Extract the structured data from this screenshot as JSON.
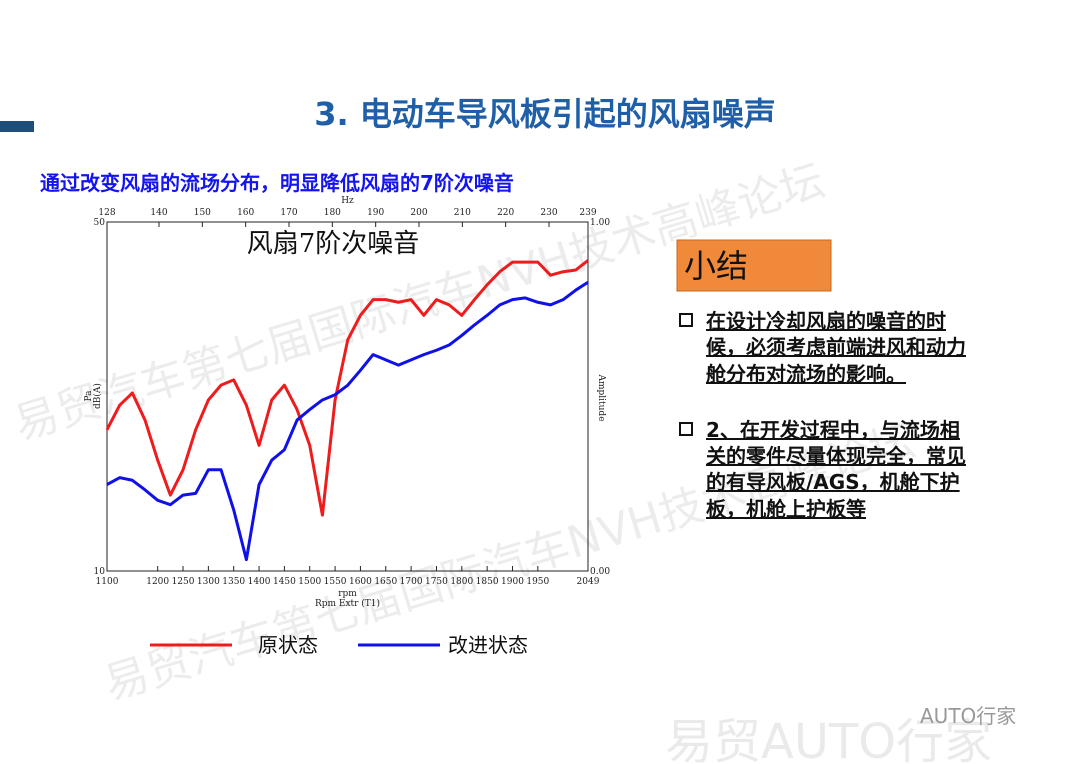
{
  "slide_title": "3.   电动车导风板引起的风扇噪声",
  "subtitle": "通过改变风扇的流场分布，明显降低风扇的7阶次噪音",
  "summary_title": "小结",
  "bullets": [
    [
      "在设计冷却风扇的噪音的时",
      "候，必须考虑前端进风和动力",
      "舱分布对流场的影响。"
    ],
    [
      "2、在开发过程中，与流场相",
      "关的零件尽量体现完全，常见",
      "的有导风板/AGS，机舱下护",
      "板，机舱上护板等"
    ]
  ],
  "watermarks": [
    "易贸汽车第七届国际汽车NVH技术高峰论坛",
    "易贸AUTO行家",
    "AUTO行家"
  ],
  "chart_data": {
    "type": "line",
    "title": "风扇7阶次噪音",
    "x": [
      1100,
      1125,
      1150,
      1175,
      1200,
      1225,
      1250,
      1275,
      1300,
      1325,
      1350,
      1375,
      1400,
      1425,
      1450,
      1475,
      1500,
      1525,
      1550,
      1575,
      1600,
      1625,
      1650,
      1675,
      1700,
      1725,
      1750,
      1775,
      1800,
      1825,
      1850,
      1875,
      1900,
      1925,
      1950,
      1975,
      2000,
      2025,
      2049
    ],
    "series": [
      {
        "name": "原状态",
        "color": "#ee1c1c",
        "values": [
          26.2,
          29.0,
          30.4,
          27.3,
          22.7,
          18.7,
          21.6,
          26.2,
          29.6,
          31.3,
          31.9,
          29.0,
          24.4,
          29.6,
          31.3,
          28.5,
          24.4,
          16.4,
          29.6,
          36.5,
          39.3,
          41.1,
          41.1,
          40.8,
          41.1,
          39.3,
          41.1,
          40.5,
          39.3,
          41.1,
          42.8,
          44.3,
          45.4,
          45.4,
          45.4,
          43.9,
          44.3,
          44.5,
          45.6
        ]
      },
      {
        "name": "改进状态",
        "color": "#1010e8",
        "values": [
          19.9,
          20.7,
          20.4,
          19.3,
          18.1,
          17.6,
          18.7,
          18.9,
          21.6,
          21.6,
          17.0,
          11.3,
          19.9,
          22.7,
          23.9,
          27.3,
          28.5,
          29.6,
          30.2,
          31.3,
          33.0,
          34.8,
          34.2,
          33.6,
          34.2,
          34.8,
          35.3,
          35.9,
          37.0,
          38.2,
          39.3,
          40.5,
          41.1,
          41.3,
          40.8,
          40.5,
          41.1,
          42.2,
          43.1
        ]
      }
    ],
    "xlim": [
      1100,
      2049
    ],
    "xticks": [
      1100,
      1200,
      1250,
      1300,
      1350,
      1400,
      1450,
      1500,
      1550,
      1600,
      1650,
      1700,
      1750,
      1800,
      1850,
      1900,
      1950,
      2049
    ],
    "x2lim": [
      128,
      239
    ],
    "x2ticks": [
      128,
      140,
      150,
      160,
      170,
      180,
      190,
      200,
      210,
      220,
      230,
      239
    ],
    "ylim": [
      10,
      50
    ],
    "yticks": [
      10,
      50
    ],
    "y2lim": [
      0,
      1
    ],
    "y2ticks": [
      {
        "value": 0,
        "label": "0.00"
      },
      {
        "value": 1,
        "label": "1.00"
      }
    ],
    "xlabel": "rpm",
    "xlabel_sub": "Rpm Extr (T1)",
    "x2label": "Hz",
    "ylabel": [
      "Pa",
      "dB(A)"
    ],
    "y2label": "Amplitude"
  }
}
